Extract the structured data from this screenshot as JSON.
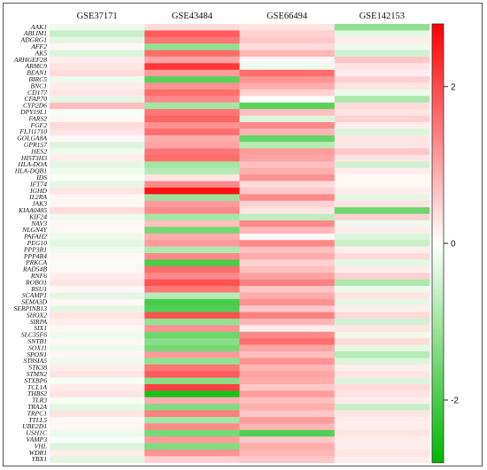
{
  "chart_data": {
    "type": "heatmap",
    "title": "",
    "columns": [
      "GSE37171",
      "GSE43484",
      "GSE66494",
      "GSE142153"
    ],
    "rows": [
      "AAK1",
      "ABLIM1",
      "ADGRG1",
      "AFF2",
      "AK5",
      "ARHGEF28",
      "ARMC9",
      "BEAN1",
      "BIRC5",
      "BNC1",
      "CD177",
      "CFAP70",
      "CYP2D6",
      "DPY19L1",
      "FARS2",
      "FGF2",
      "FLJ11710",
      "GOLGA8A",
      "GPR157",
      "HES2",
      "HIST3H3",
      "HLA-DOA",
      "HLA-DQB1",
      "IDS",
      "IFT74",
      "IGHD",
      "IL2RA",
      "JAK3",
      "KIAA0485",
      "KIF24",
      "NAV3",
      "NLGN4Y",
      "PAFAH2",
      "PEG10",
      "PPP3R1",
      "PPP4R4",
      "PRKCA",
      "RAD54B",
      "RNF6",
      "ROBO1",
      "RSU1",
      "SCAMP1",
      "SEMA3D",
      "SERPINB13",
      "SHOX2",
      "SIRPA",
      "SIX1",
      "SLC35F6",
      "SNTB1",
      "SOX11",
      "SPON1",
      "ST8SIA5",
      "STK38",
      "STMN2",
      "STXBP6",
      "TCL1A",
      "THBS2",
      "TLR3",
      "TRA2A",
      "TRPC1",
      "TTLL5",
      "UBE2D1",
      "USH1C",
      "VAMP3",
      "VHL",
      "WDR1",
      "YBX1"
    ],
    "values": [
      [
        -0.2,
        0.4,
        0.3,
        -1.2
      ],
      [
        -0.6,
        1.8,
        0.5,
        -0.3
      ],
      [
        -0.3,
        1.5,
        0.6,
        0.2
      ],
      [
        0.1,
        -1.2,
        0.4,
        -0.2
      ],
      [
        -0.4,
        1.6,
        0.8,
        -0.5
      ],
      [
        0.2,
        1.0,
        0.1,
        0.6
      ],
      [
        0.3,
        2.2,
        -0.2,
        0.3
      ],
      [
        0.4,
        1.1,
        1.6,
        0.2
      ],
      [
        -0.2,
        -1.8,
        1.2,
        0.5
      ],
      [
        0.2,
        1.2,
        0.9,
        0.3
      ],
      [
        0.3,
        1.6,
        0.5,
        -0.2
      ],
      [
        -0.3,
        1.3,
        0.0,
        -0.9
      ],
      [
        0.7,
        -1.0,
        -1.8,
        0.4
      ],
      [
        -0.1,
        1.5,
        0.7,
        0.3
      ],
      [
        0.1,
        1.7,
        -0.4,
        0.5
      ],
      [
        0.4,
        1.2,
        1.3,
        0.2
      ],
      [
        0.3,
        1.6,
        0.8,
        -0.4
      ],
      [
        0.1,
        0.9,
        -1.7,
        0.3
      ],
      [
        -0.4,
        1.0,
        -0.8,
        0.3
      ],
      [
        -0.2,
        1.5,
        1.1,
        0.6
      ],
      [
        0.2,
        1.6,
        1.0,
        0.3
      ],
      [
        -0.3,
        -1.0,
        0.7,
        -0.5
      ],
      [
        -0.2,
        -0.8,
        0.9,
        0.2
      ],
      [
        -0.1,
        0.3,
        1.2,
        0.1
      ],
      [
        -0.3,
        1.3,
        0.4,
        0.1
      ],
      [
        0.3,
        2.6,
        0.6,
        0.2
      ],
      [
        0.1,
        -1.1,
        1.3,
        -0.3
      ],
      [
        0.1,
        1.1,
        0.5,
        0.3
      ],
      [
        0.4,
        1.3,
        0.3,
        -1.6
      ],
      [
        -0.2,
        -1.0,
        -0.7,
        0.5
      ],
      [
        0.1,
        0.7,
        1.3,
        -0.2
      ],
      [
        0.1,
        -1.5,
        0.8,
        0.2
      ],
      [
        -0.2,
        0.9,
        0.1,
        -0.4
      ],
      [
        -0.3,
        1.1,
        1.3,
        -0.6
      ],
      [
        -0.2,
        -0.9,
        0.7,
        0.2
      ],
      [
        0.1,
        1.3,
        0.9,
        0.4
      ],
      [
        -0.1,
        -2.0,
        0.5,
        -0.3
      ],
      [
        0.1,
        1.6,
        0.7,
        0.2
      ],
      [
        0.2,
        1.3,
        1.0,
        0.5
      ],
      [
        0.3,
        1.9,
        1.4,
        -0.9
      ],
      [
        0.1,
        1.5,
        0.6,
        -0.2
      ],
      [
        -0.3,
        -0.8,
        0.9,
        0.3
      ],
      [
        0.1,
        -2.0,
        1.2,
        -0.3
      ],
      [
        -0.3,
        -1.9,
        0.6,
        0.2
      ],
      [
        0.3,
        1.9,
        1.4,
        0.4
      ],
      [
        0.2,
        -1.2,
        0.8,
        -0.5
      ],
      [
        0.1,
        1.2,
        0.2,
        0.3
      ],
      [
        -0.2,
        -1.6,
        1.3,
        -0.2
      ],
      [
        0.1,
        -1.3,
        1.6,
        0.4
      ],
      [
        -0.2,
        -1.5,
        1.0,
        -0.3
      ],
      [
        0.1,
        1.1,
        0.7,
        -0.8
      ],
      [
        -0.2,
        -1.2,
        1.2,
        -0.4
      ],
      [
        0.2,
        1.5,
        0.8,
        0.2
      ],
      [
        0.3,
        1.8,
        1.0,
        0.3
      ],
      [
        -0.1,
        -1.3,
        0.9,
        -0.4
      ],
      [
        0.2,
        2.1,
        0.6,
        0.4
      ],
      [
        0.3,
        -2.5,
        1.1,
        0.3
      ],
      [
        -0.1,
        0.9,
        0.7,
        0.2
      ],
      [
        -0.3,
        -1.4,
        0.9,
        -0.6
      ],
      [
        0.3,
        1.4,
        0.6,
        0.3
      ],
      [
        0.1,
        -1.0,
        1.1,
        0.2
      ],
      [
        0.1,
        1.3,
        0.8,
        0.2
      ],
      [
        -0.2,
        -1.5,
        -1.9,
        0.3
      ],
      [
        -0.1,
        1.1,
        0.6,
        0.2
      ],
      [
        -0.4,
        -1.4,
        0.9,
        0.2
      ],
      [
        0.2,
        1.2,
        0.8,
        0.3
      ],
      [
        -0.3,
        0.5,
        0.6,
        0.2
      ]
    ],
    "colorbar": {
      "range": [
        -2.8,
        2.8
      ],
      "ticks": [
        2,
        0,
        -2
      ],
      "tick_labels": [
        "2",
        "0",
        "-2"
      ],
      "colors": {
        "low": "#00b800",
        "mid": "#ffffff",
        "high": "#ff0000"
      }
    },
    "grid": false
  }
}
